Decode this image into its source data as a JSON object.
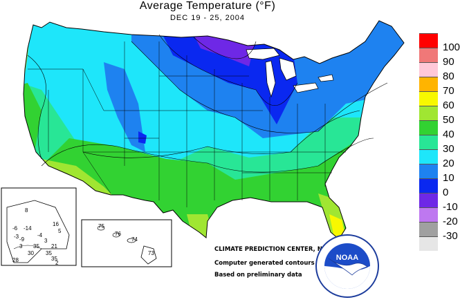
{
  "header": {
    "title": "Average Temperature (°F)",
    "subtitle": "DEC 19 - 25, 2004"
  },
  "legend": {
    "entries": [
      {
        "label": "100",
        "color": "#ff0000"
      },
      {
        "label": "90",
        "color": "#f07878"
      },
      {
        "label": "80",
        "color": "#ffc8d8"
      },
      {
        "label": "70",
        "color": "#ffb400"
      },
      {
        "label": "60",
        "color": "#f8f800"
      },
      {
        "label": "50",
        "color": "#a0e632"
      },
      {
        "label": "40",
        "color": "#32d232"
      },
      {
        "label": "30",
        "color": "#28e696"
      },
      {
        "label": "20",
        "color": "#1ee6fa"
      },
      {
        "label": "10",
        "color": "#1e82f0"
      },
      {
        "label": "0",
        "color": "#0a28f0"
      },
      {
        "label": "-10",
        "color": "#6e28e6"
      },
      {
        "label": "-20",
        "color": "#be78f0"
      },
      {
        "label": "-30",
        "color": "#a0a0a0"
      },
      {
        "label": "",
        "color": "#e6e6e6"
      }
    ]
  },
  "credits": {
    "line1": "CLIMATE PREDICTION CENTER, NOAA",
    "line2": "Computer generated contours",
    "line3": "Based on preliminary data"
  },
  "logo": {
    "text": "NOAA",
    "icon": "noaa-bird-icon"
  },
  "alaska_labels": [
    "8",
    "16",
    "-6",
    "-14",
    "-9",
    "-4",
    "-3",
    "3",
    "3",
    "35",
    "21",
    "30",
    "35",
    "28",
    "35",
    "5",
    "2"
  ],
  "hawaii_labels": [
    "75",
    "76",
    "74",
    "73"
  ]
}
